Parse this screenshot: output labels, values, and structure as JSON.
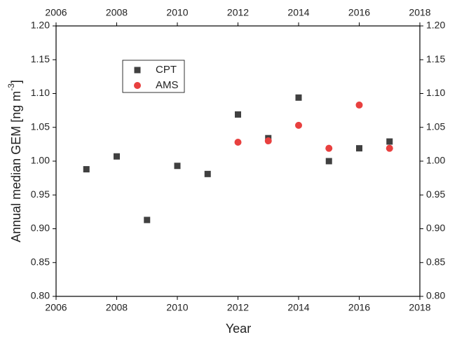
{
  "chart_data": {
    "type": "scatter",
    "xlabel": "Year",
    "ylabel": "Annual median GEM [ng m",
    "ylabel_sup": "-3",
    "ylabel_end": "]",
    "xlim": [
      2006,
      2018
    ],
    "xticks": [
      2006,
      2008,
      2010,
      2012,
      2014,
      2016,
      2018
    ],
    "ylim": [
      0.8,
      1.2
    ],
    "yticks": [
      {
        "value": 0.8,
        "label": "0.80"
      },
      0.85,
      {
        "value": 0.9,
        "label": "0.90"
      },
      0.95,
      {
        "value": 1.0,
        "label": "1.00"
      },
      1.05,
      {
        "value": 1.1,
        "label": "1.10"
      },
      1.15,
      {
        "value": 1.2,
        "label": "1.20"
      }
    ],
    "legend": "upper left",
    "series": [
      {
        "name": "CPT",
        "color": "#404040",
        "marker": "square",
        "x": [
          2007,
          2008,
          2009,
          2010,
          2011,
          2012,
          2013,
          2014,
          2015,
          2016,
          2017
        ],
        "values": [
          0.988,
          1.007,
          0.913,
          0.993,
          0.981,
          1.069,
          1.034,
          1.094,
          1.0,
          1.019,
          1.029
        ]
      },
      {
        "name": "AMS",
        "color": "#e8403f",
        "marker": "circle",
        "x": [
          2012,
          2013,
          2014,
          2015,
          2016,
          2017
        ],
        "values": [
          1.028,
          1.03,
          1.053,
          1.019,
          1.083,
          1.019
        ]
      }
    ]
  }
}
